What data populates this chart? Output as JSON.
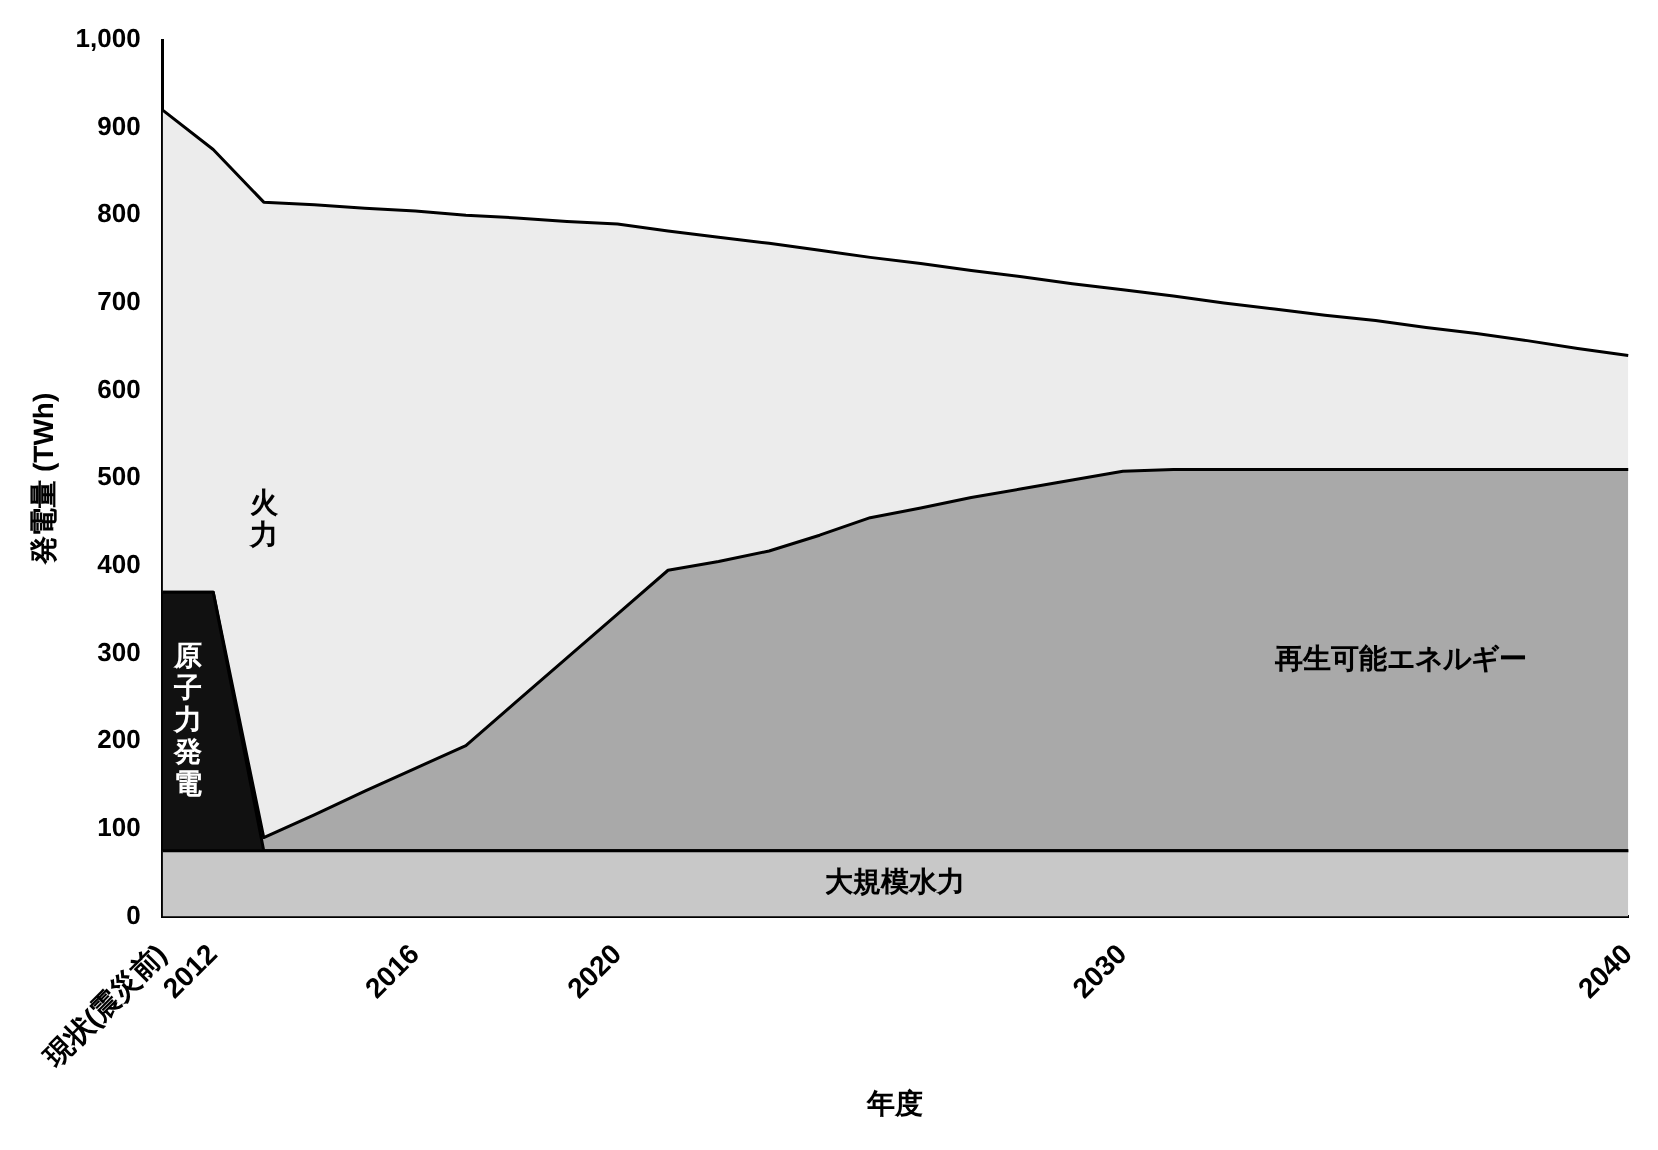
{
  "chart_data": {
    "type": "area",
    "stacked": true,
    "xlabel": "年度",
    "ylabel": "発電量 (TWh)",
    "categories": [
      "現状(震災前)",
      "2012",
      null,
      null,
      null,
      "2016",
      null,
      null,
      null,
      "2020",
      null,
      null,
      null,
      null,
      null,
      null,
      null,
      null,
      null,
      "2030",
      null,
      null,
      null,
      null,
      null,
      null,
      null,
      null,
      null,
      "2040"
    ],
    "series": [
      {
        "name": "大規模水力",
        "color": "#c8c8c8",
        "values": [
          75,
          75,
          75,
          75,
          75,
          75,
          75,
          75,
          75,
          75,
          75,
          75,
          75,
          75,
          75,
          75,
          75,
          75,
          75,
          75,
          75,
          75,
          75,
          75,
          75,
          75,
          75,
          75,
          75,
          75
        ]
      },
      {
        "name": "原子力発電",
        "color": "#111111",
        "values": [
          295,
          295,
          0,
          0,
          0,
          0,
          0,
          0,
          0,
          0,
          0,
          0,
          0,
          0,
          0,
          0,
          0,
          0,
          0,
          0,
          0,
          0,
          0,
          0,
          0,
          0,
          0,
          0,
          0,
          0
        ]
      },
      {
        "name": "再生可能エネルギー",
        "color": "#a9a9a9",
        "values": [
          0,
          0,
          15,
          41,
          68,
          94,
          120,
          170,
          220,
          270,
          320,
          330,
          342,
          360,
          380,
          391,
          403,
          413,
          423,
          433,
          435,
          435,
          435,
          435,
          435,
          435,
          435,
          435,
          435,
          435
        ]
      },
      {
        "name": "火力",
        "color": "#ececec",
        "values": [
          550,
          505,
          725,
          696,
          665,
          636,
          605,
          552,
          498,
          445,
          387,
          370,
          351,
          325,
          297,
          279,
          259,
          242,
          224,
          207,
          198,
          190,
          183,
          176,
          170,
          162,
          155,
          147,
          138,
          130
        ]
      }
    ],
    "ylim": [
      0,
      1000
    ],
    "yticks": [
      0,
      100,
      200,
      300,
      400,
      500,
      600,
      700,
      800,
      900,
      {
        "value": 1000,
        "label": "1,000"
      }
    ],
    "grid": false,
    "legend": false
  }
}
